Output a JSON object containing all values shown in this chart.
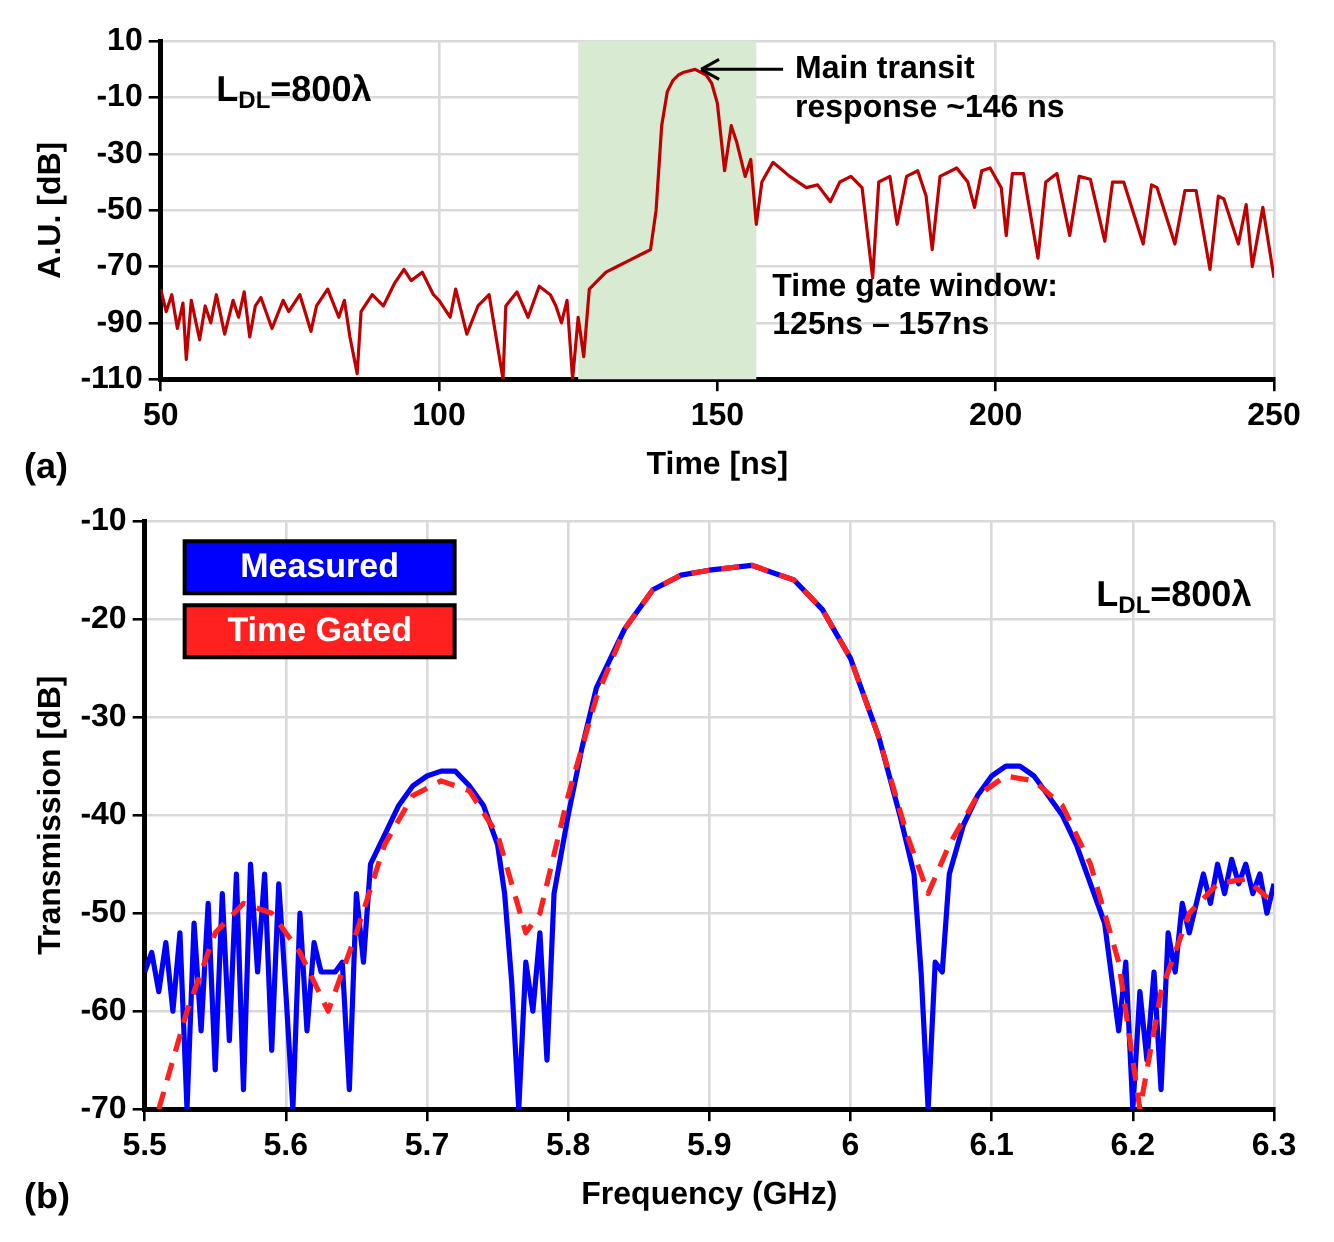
{
  "chart_data": [
    {
      "type": "line",
      "xlabel": "Time [ns]",
      "ylabel": "A.U. [dB]",
      "xlim": [
        50,
        250
      ],
      "ylim": [
        -110,
        10
      ],
      "xticks": [
        50,
        100,
        150,
        200,
        250
      ],
      "yticks": [
        -110,
        -90,
        -70,
        -50,
        -30,
        -10,
        10
      ],
      "grid": true,
      "marker": "none",
      "line_style": "solid",
      "annotations": [
        "L$_{DL}$=800λ",
        {
          "text": "Main transit\nresponse ~146 ns",
          "x": 146,
          "y": 0
        },
        "(a)"
      ],
      "bands": [
        {
          "axis": "x",
          "from": 125,
          "to": 157,
          "label": "Time gate window:\n125ns – 157ns",
          "color": "#d9ead3"
        }
      ],
      "series": [
        {
          "color": "#c00000",
          "x": [
            50,
            51,
            52,
            53,
            54,
            54.6,
            55.5,
            57,
            58,
            59,
            60,
            61.5,
            63,
            64,
            65,
            66,
            67,
            68,
            70,
            72,
            73,
            75,
            77,
            78,
            80,
            82,
            83,
            84,
            85.3,
            86,
            88,
            90,
            92,
            93.7,
            95,
            97,
            99,
            100,
            102,
            103,
            105,
            107,
            109,
            110,
            111.5,
            112,
            114,
            116,
            118,
            120,
            121,
            122,
            123,
            124,
            125,
            126,
            127,
            128,
            130,
            132,
            134,
            136,
            137,
            138,
            139,
            140,
            141,
            142,
            143,
            144,
            146,
            148,
            149,
            150,
            151.3,
            152.5,
            153.5,
            155,
            156,
            157,
            158,
            160,
            163,
            166,
            168,
            170.3,
            172,
            174,
            176,
            177.9,
            179,
            181,
            182.3,
            184,
            186,
            187.5,
            188.6,
            190,
            193,
            195,
            196.2,
            197.5,
            199,
            201,
            201.9,
            203,
            205,
            207.6,
            209,
            211,
            213.3,
            215,
            217,
            219.6,
            221,
            223,
            226.5,
            228,
            229,
            232.2,
            234,
            236,
            238.5,
            240,
            241,
            243.6,
            245,
            246.1,
            248,
            250
          ],
          "values": [
            -78,
            -86,
            -80,
            -92,
            -83,
            -103,
            -82,
            -96,
            -84,
            -90,
            -80,
            -94,
            -82,
            -88,
            -79,
            -95,
            -84,
            -81,
            -92,
            -82,
            -86,
            -80,
            -93,
            -84,
            -78,
            -88,
            -82,
            -95,
            -108,
            -86,
            -80,
            -84,
            -76,
            -71,
            -75,
            -72,
            -80,
            -82,
            -88,
            -78,
            -94,
            -84,
            -80,
            -92,
            -110,
            -84,
            -79,
            -88,
            -77,
            -80,
            -84,
            -90,
            -82,
            -110,
            -88,
            -102,
            -78,
            -76,
            -72,
            -70,
            -68,
            -66,
            -65,
            -64,
            -50,
            -20,
            -8,
            -4,
            -2,
            -1,
            0,
            -2,
            -5,
            -12,
            -36,
            -20,
            -26,
            -38,
            -32,
            -55,
            -40,
            -33,
            -38,
            -42,
            -41,
            -47,
            -40,
            -38,
            -42,
            -74,
            -40,
            -38,
            -55,
            -38,
            -36,
            -45,
            -64,
            -38,
            -35,
            -40,
            -49,
            -36,
            -35,
            -42,
            -59,
            -37,
            -37,
            -67,
            -40,
            -37,
            -59,
            -38,
            -39,
            -61,
            -40,
            -40,
            -62,
            -41,
            -42,
            -62,
            -43,
            -43,
            -71,
            -45,
            -46,
            -62,
            -48,
            -70,
            -49,
            -74
          ]
        }
      ]
    },
    {
      "type": "line",
      "xlabel": "Frequency (GHz)",
      "ylabel": "Transmission [dB]",
      "xlim": [
        5.5,
        6.3
      ],
      "ylim": [
        -70,
        -10
      ],
      "xticks": [
        5.5,
        5.6,
        5.7,
        5.8,
        5.9,
        6,
        6.1,
        6.2,
        6.3
      ],
      "yticks": [
        -70,
        -60,
        -50,
        -40,
        -30,
        -20,
        -10
      ],
      "grid": true,
      "marker": "none",
      "legend": "top left",
      "annotations": [
        "L$_{DL}$=800λ",
        "(b)"
      ],
      "series": [
        {
          "name": "Measured",
          "color": "#0000ff",
          "line_style": "solid",
          "x": [
            5.5,
            5.505,
            5.51,
            5.515,
            5.52,
            5.525,
            5.53,
            5.535,
            5.54,
            5.545,
            5.55,
            5.555,
            5.56,
            5.565,
            5.57,
            5.575,
            5.58,
            5.585,
            5.59,
            5.595,
            5.6,
            5.605,
            5.61,
            5.615,
            5.62,
            5.625,
            5.63,
            5.635,
            5.64,
            5.645,
            5.65,
            5.655,
            5.66,
            5.67,
            5.68,
            5.69,
            5.7,
            5.71,
            5.72,
            5.73,
            5.74,
            5.75,
            5.755,
            5.76,
            5.765,
            5.77,
            5.775,
            5.78,
            5.785,
            5.79,
            5.8,
            5.81,
            5.82,
            5.84,
            5.86,
            5.88,
            5.9,
            5.93,
            5.96,
            5.98,
            6,
            6.02,
            6.035,
            6.045,
            6.05,
            6.055,
            6.06,
            6.065,
            6.07,
            6.08,
            6.09,
            6.1,
            6.11,
            6.12,
            6.13,
            6.14,
            6.15,
            6.16,
            6.17,
            6.18,
            6.19,
            6.195,
            6.2,
            6.205,
            6.21,
            6.215,
            6.22,
            6.225,
            6.23,
            6.235,
            6.24,
            6.25,
            6.255,
            6.26,
            6.265,
            6.27,
            6.275,
            6.28,
            6.285,
            6.29,
            6.295,
            6.3
          ],
          "values": [
            -56,
            -54,
            -58,
            -53,
            -60,
            -52,
            -70,
            -51,
            -62,
            -49,
            -66,
            -48,
            -63,
            -46,
            -68,
            -45,
            -56,
            -46,
            -64,
            -47,
            -58,
            -70,
            -50,
            -62,
            -53,
            -56,
            -56,
            -56,
            -55,
            -68,
            -48,
            -55,
            -45,
            -42,
            -39,
            -37,
            -36,
            -35.5,
            -35.5,
            -37,
            -39,
            -43,
            -48,
            -57,
            -70,
            -55,
            -60,
            -52,
            -65,
            -48,
            -40,
            -33,
            -27,
            -21,
            -17,
            -15.5,
            -15,
            -14.5,
            -16,
            -19,
            -24,
            -32,
            -40,
            -46,
            -56,
            -70,
            -55,
            -56,
            -46,
            -41,
            -38,
            -36,
            -35,
            -35,
            -36,
            -38,
            -40,
            -43,
            -47,
            -51,
            -62,
            -55,
            -70,
            -58,
            -65,
            -56,
            -68,
            -52,
            -56,
            -49,
            -52,
            -46,
            -49,
            -45,
            -48,
            -44.5,
            -47,
            -45,
            -48,
            -46,
            -50,
            -47
          ]
        },
        {
          "name": "Time Gated",
          "color": "#ff2020",
          "line_style": "dashed",
          "x": [
            5.51,
            5.53,
            5.55,
            5.57,
            5.59,
            5.61,
            5.63,
            5.65,
            5.67,
            5.69,
            5.71,
            5.73,
            5.75,
            5.77,
            5.78,
            5.8,
            5.82,
            5.84,
            5.86,
            5.88,
            5.9,
            5.93,
            5.96,
            5.98,
            6,
            6.02,
            6.04,
            6.055,
            6.07,
            6.09,
            6.11,
            6.13,
            6.15,
            6.17,
            6.19,
            6.205,
            6.22,
            6.24,
            6.26,
            6.28,
            6.3
          ],
          "values": [
            -70,
            -60,
            -52,
            -49,
            -50,
            -54,
            -60,
            -52,
            -43,
            -38,
            -36.5,
            -37.5,
            -42,
            -52,
            -50,
            -38,
            -28,
            -21,
            -17,
            -15.5,
            -15,
            -14.5,
            -16,
            -19,
            -24,
            -32,
            -42,
            -48,
            -43,
            -38,
            -36,
            -36.5,
            -39,
            -45,
            -55,
            -70,
            -58,
            -50,
            -47,
            -46.5,
            -49
          ]
        }
      ]
    }
  ]
}
